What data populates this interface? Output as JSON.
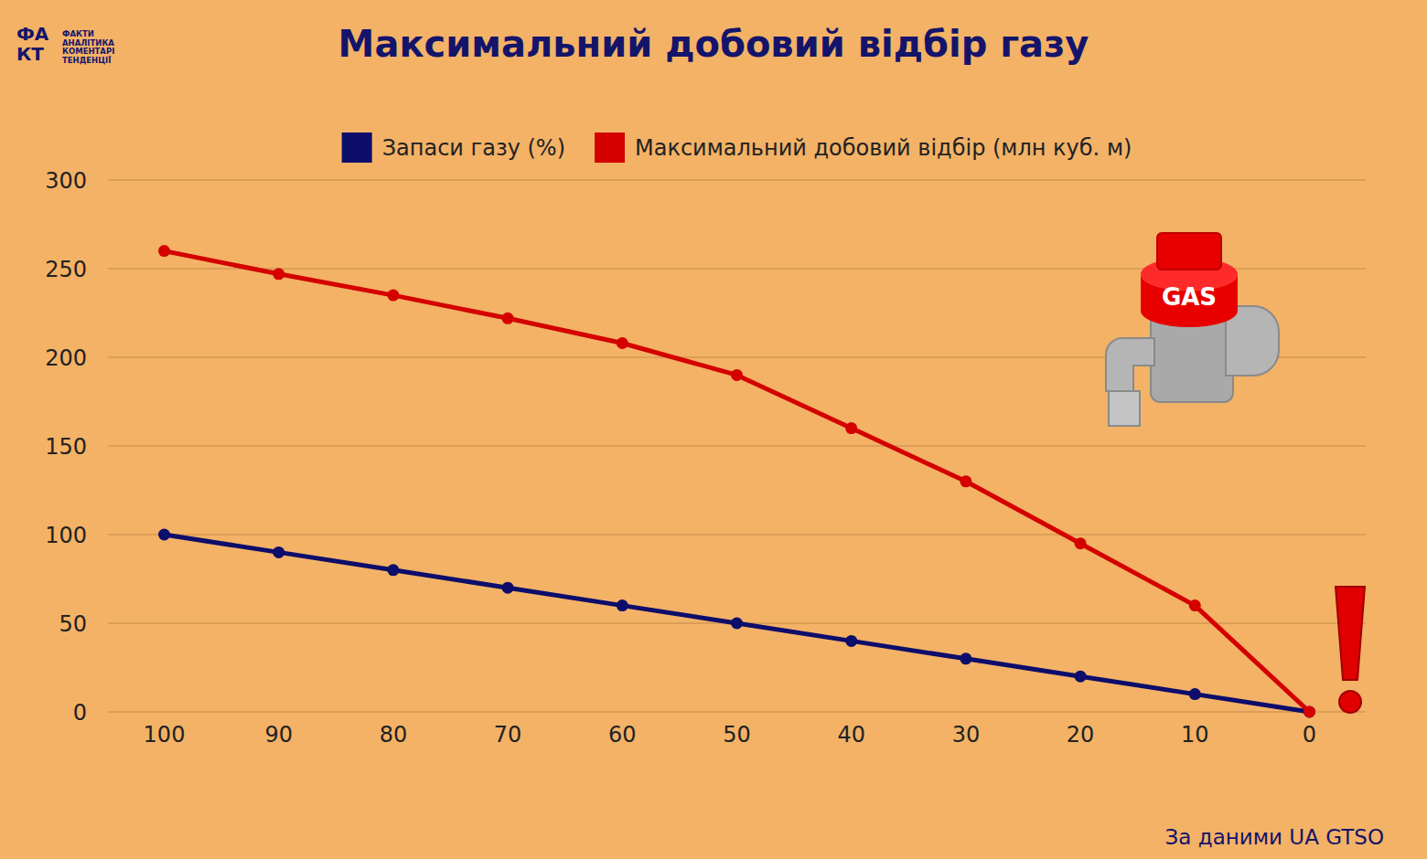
{
  "chart_data": {
    "type": "line",
    "title": "Максимальний добовий відбір газу",
    "categories": [
      "100",
      "90",
      "80",
      "70",
      "60",
      "50",
      "40",
      "30",
      "20",
      "10",
      "0"
    ],
    "series": [
      {
        "name": "Запаси газу (%)",
        "color": "#0d0d6b",
        "marker": "circle",
        "line_style": "solid",
        "values": [
          100,
          90,
          80,
          70,
          60,
          50,
          40,
          30,
          20,
          10,
          0
        ]
      },
      {
        "name": "Максимальний добовий відбір (млн куб. м)",
        "color": "#d40000",
        "marker": "circle",
        "line_style": "solid",
        "values": [
          260,
          247,
          235,
          222,
          208,
          190,
          160,
          130,
          95,
          60,
          0
        ]
      }
    ],
    "ylim": [
      0,
      300
    ],
    "yticks": [
      0,
      50,
      100,
      150,
      200,
      250,
      300
    ],
    "grid": true,
    "legend": "top"
  },
  "source": "За даними UA GTSO",
  "icon_text": "GAS",
  "logo": {
    "mark_top": "ФА",
    "mark_bottom": "КТ",
    "lines": [
      "ФАКТИ",
      "АНАЛІТИКА",
      "КОМЕНТАРІ",
      "ТЕНДЕНЦІЇ"
    ]
  }
}
